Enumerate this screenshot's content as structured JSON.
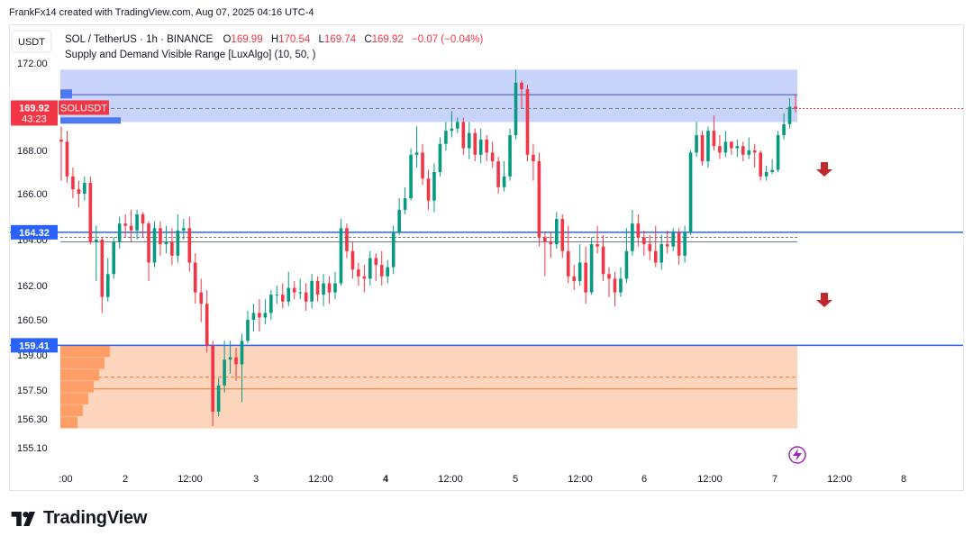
{
  "credit": "FrankFx14 created with TradingView.com, Aug 07, 2025 04:16 UTC-4",
  "brand": "TradingView",
  "currency_button": "USDT",
  "legend": {
    "symbol": "SOL / TetherUS · 1h · BINANCE",
    "o_label": "O",
    "o_value": "169.99",
    "h_label": "H",
    "h_value": "170.54",
    "l_label": "L",
    "l_value": "169.74",
    "c_label": "C",
    "c_value": "169.92",
    "change": "−0.07 (−0.04%)",
    "indicator": "Supply and Demand Visible Range [LuxAlgo] (10, 50, )"
  },
  "price_badge": {
    "price": "169.92",
    "countdown": "43:23",
    "symbol_tag": "SOLUSDT"
  },
  "hlines": [
    {
      "value": 164.32,
      "label": "164.32",
      "color": "#2962ff"
    },
    {
      "value": 159.41,
      "label": "159.41",
      "color": "#2962ff"
    }
  ],
  "arrows": [
    {
      "name": "down-arrow-upper"
    },
    {
      "name": "down-arrow-lower"
    }
  ],
  "colors": {
    "up": "#089981",
    "down": "#f23645",
    "supply": "#c9d4fb",
    "demand": "#fdd5bc",
    "hline": "#2962ff"
  },
  "chart_data": {
    "type": "candlestick",
    "y_ticks": [
      "172.00",
      "168.00",
      "166.00",
      "164.00",
      "162.00",
      "160.50",
      "159.00",
      "157.50",
      "156.30",
      "155.10"
    ],
    "y_tick_values": [
      172.0,
      168.0,
      166.0,
      164.0,
      162.0,
      160.5,
      159.0,
      157.5,
      156.3,
      155.1
    ],
    "x_ticks": [
      ":00",
      "2",
      "12:00",
      "3",
      "12:00",
      "4",
      "12:00",
      "5",
      "12:00",
      "6",
      "12:00",
      "7",
      "12:00",
      "8"
    ],
    "x_tick_bold": [
      false,
      false,
      false,
      false,
      false,
      true,
      false,
      false,
      false,
      false,
      false,
      false,
      false,
      false
    ],
    "supply_zone": {
      "top": 171.7,
      "bottom": 169.3,
      "avg": 169.92,
      "poc": 170.55
    },
    "demand_zone": {
      "top": 159.4,
      "bottom": 155.9,
      "avg": 158.05,
      "poc": 157.55
    },
    "candles": [
      [
        168.5,
        168.4,
        169.1,
        166.6
      ],
      [
        168.4,
        166.8,
        168.9,
        166.5
      ],
      [
        166.8,
        166.2,
        167.2,
        165.8
      ],
      [
        166.2,
        166.0,
        166.6,
        165.4
      ],
      [
        166.0,
        166.5,
        166.8,
        165.7
      ],
      [
        166.5,
        163.9,
        166.8,
        163.8
      ],
      [
        163.9,
        164.0,
        164.6,
        162.2
      ],
      [
        164.0,
        161.5,
        164.1,
        160.8
      ],
      [
        161.5,
        162.5,
        163.2,
        161.3
      ],
      [
        162.5,
        163.9,
        164.1,
        162.3
      ],
      [
        163.9,
        164.7,
        165.0,
        163.6
      ],
      [
        164.7,
        164.6,
        165.1,
        164.1
      ],
      [
        164.6,
        164.4,
        165.3,
        163.9
      ],
      [
        164.4,
        165.1,
        165.3,
        164.0
      ],
      [
        165.1,
        164.7,
        165.2,
        164.1
      ],
      [
        164.7,
        163.0,
        164.8,
        162.2
      ],
      [
        163.0,
        164.5,
        164.8,
        162.8
      ],
      [
        164.5,
        163.8,
        164.8,
        163.3
      ],
      [
        163.8,
        163.9,
        164.6,
        163.4
      ],
      [
        163.9,
        163.3,
        164.5,
        162.9
      ],
      [
        163.3,
        164.4,
        165.1,
        163.0
      ],
      [
        164.4,
        164.5,
        164.9,
        164.0
      ],
      [
        164.5,
        163.0,
        165.0,
        162.6
      ],
      [
        163.0,
        161.7,
        163.4,
        161.2
      ],
      [
        161.7,
        161.2,
        162.3,
        160.4
      ],
      [
        161.2,
        159.4,
        161.8,
        159.1
      ],
      [
        159.4,
        156.6,
        159.6,
        156.0
      ],
      [
        156.6,
        157.7,
        158.0,
        156.4
      ],
      [
        157.7,
        158.8,
        159.6,
        157.4
      ],
      [
        158.8,
        158.9,
        159.6,
        158.2
      ],
      [
        158.9,
        158.6,
        159.3,
        157.9
      ],
      [
        158.6,
        159.6,
        159.9,
        157.0
      ],
      [
        159.6,
        160.5,
        160.9,
        159.5
      ],
      [
        160.5,
        160.8,
        161.2,
        160.0
      ],
      [
        160.8,
        160.6,
        161.4,
        160.0
      ],
      [
        160.6,
        160.8,
        161.4,
        160.3
      ],
      [
        160.8,
        161.6,
        161.8,
        160.5
      ],
      [
        161.6,
        161.6,
        162.0,
        161.2
      ],
      [
        161.6,
        161.3,
        162.1,
        161.0
      ],
      [
        161.3,
        161.9,
        162.6,
        161.1
      ],
      [
        161.9,
        161.7,
        162.2,
        161.4
      ],
      [
        161.7,
        161.7,
        162.3,
        161.4
      ],
      [
        161.7,
        161.3,
        162.1,
        160.9
      ],
      [
        161.3,
        162.2,
        162.5,
        161.0
      ],
      [
        162.2,
        161.6,
        162.4,
        161.3
      ],
      [
        161.6,
        162.1,
        162.5,
        161.1
      ],
      [
        162.1,
        161.7,
        162.4,
        161.2
      ],
      [
        161.7,
        162.1,
        162.6,
        161.4
      ],
      [
        162.1,
        164.5,
        164.9,
        162.0
      ],
      [
        164.5,
        163.5,
        164.7,
        163.2
      ],
      [
        163.5,
        162.7,
        163.9,
        162.3
      ],
      [
        162.7,
        162.4,
        163.0,
        162.0
      ],
      [
        162.4,
        162.3,
        162.9,
        161.7
      ],
      [
        162.3,
        163.2,
        163.5,
        162.0
      ],
      [
        163.2,
        162.9,
        163.4,
        162.2
      ],
      [
        162.9,
        162.4,
        163.5,
        162.0
      ],
      [
        162.4,
        162.8,
        163.1,
        162.1
      ],
      [
        162.8,
        164.3,
        164.6,
        162.5
      ],
      [
        164.3,
        165.3,
        165.8,
        164.2
      ],
      [
        165.3,
        165.8,
        166.3,
        165.1
      ],
      [
        165.8,
        167.8,
        168.1,
        165.7
      ],
      [
        167.8,
        167.9,
        169.1,
        167.2
      ],
      [
        167.9,
        166.7,
        168.3,
        166.4
      ],
      [
        166.7,
        165.7,
        167.1,
        165.3
      ],
      [
        165.7,
        167.0,
        167.4,
        165.2
      ],
      [
        167.0,
        168.3,
        168.6,
        166.8
      ],
      [
        168.3,
        168.9,
        169.3,
        168.0
      ],
      [
        168.9,
        169.0,
        169.8,
        168.6
      ],
      [
        169.0,
        169.3,
        169.5,
        168.8
      ],
      [
        169.3,
        168.1,
        169.5,
        167.8
      ],
      [
        168.1,
        168.8,
        169.3,
        167.6
      ],
      [
        168.8,
        167.8,
        169.0,
        167.5
      ],
      [
        167.8,
        168.5,
        169.0,
        167.4
      ],
      [
        168.5,
        167.9,
        168.7,
        167.5
      ],
      [
        167.9,
        167.5,
        168.4,
        167.2
      ],
      [
        167.5,
        166.3,
        167.7,
        166.0
      ],
      [
        166.3,
        166.8,
        167.5,
        166.1
      ],
      [
        166.8,
        168.7,
        169.0,
        166.6
      ],
      [
        168.7,
        171.1,
        171.7,
        168.5
      ],
      [
        171.1,
        170.8,
        171.2,
        169.9
      ],
      [
        170.8,
        167.8,
        171.0,
        167.5
      ],
      [
        167.8,
        167.5,
        168.3,
        166.6
      ],
      [
        167.5,
        164.1,
        167.9,
        163.7
      ],
      [
        164.1,
        163.9,
        164.3,
        162.4
      ],
      [
        163.9,
        163.8,
        164.3,
        163.2
      ],
      [
        163.8,
        164.9,
        165.2,
        163.6
      ],
      [
        164.9,
        163.5,
        165.1,
        163.2
      ],
      [
        163.5,
        162.4,
        164.6,
        162.1
      ],
      [
        162.4,
        162.2,
        162.9,
        161.8
      ],
      [
        162.2,
        163.0,
        163.8,
        162.0
      ],
      [
        163.0,
        161.7,
        163.7,
        161.2
      ],
      [
        161.7,
        163.8,
        164.1,
        161.6
      ],
      [
        163.8,
        163.7,
        164.6,
        163.4
      ],
      [
        163.7,
        162.5,
        164.2,
        162.2
      ],
      [
        162.5,
        162.3,
        162.8,
        161.5
      ],
      [
        162.3,
        161.7,
        162.6,
        161.1
      ],
      [
        161.7,
        162.3,
        162.8,
        161.5
      ],
      [
        162.3,
        163.5,
        164.5,
        162.1
      ],
      [
        163.5,
        164.7,
        165.3,
        163.3
      ],
      [
        164.7,
        164.1,
        165.1,
        163.7
      ],
      [
        164.1,
        163.8,
        164.4,
        163.3
      ],
      [
        163.8,
        163.5,
        164.2,
        163.1
      ],
      [
        163.5,
        163.0,
        164.6,
        162.8
      ],
      [
        163.0,
        163.8,
        164.2,
        162.7
      ],
      [
        163.8,
        163.7,
        164.4,
        163.4
      ],
      [
        163.7,
        164.3,
        164.5,
        163.5
      ],
      [
        164.3,
        163.3,
        164.5,
        162.9
      ],
      [
        163.3,
        164.3,
        164.6,
        163.0
      ],
      [
        164.3,
        167.9,
        168.0,
        164.2
      ],
      [
        167.9,
        168.7,
        169.3,
        167.7
      ],
      [
        168.7,
        167.5,
        168.9,
        167.3
      ],
      [
        167.5,
        168.9,
        169.1,
        167.2
      ],
      [
        168.9,
        168.2,
        169.6,
        168.0
      ],
      [
        168.2,
        167.9,
        168.7,
        167.6
      ],
      [
        167.9,
        168.4,
        168.9,
        167.7
      ],
      [
        168.4,
        168.1,
        168.4,
        167.8
      ],
      [
        168.1,
        168.2,
        168.5,
        167.7
      ],
      [
        168.2,
        167.8,
        168.4,
        167.5
      ],
      [
        167.8,
        168.0,
        168.6,
        167.6
      ],
      [
        168.0,
        167.9,
        168.3,
        167.2
      ],
      [
        167.9,
        166.8,
        168.0,
        166.6
      ],
      [
        166.8,
        167.0,
        167.3,
        166.6
      ],
      [
        167.0,
        167.1,
        167.6,
        166.9
      ],
      [
        167.1,
        168.7,
        168.9,
        167.0
      ],
      [
        168.7,
        169.2,
        169.7,
        168.5
      ],
      [
        169.2,
        170.0,
        170.4,
        169.0
      ],
      [
        170.0,
        169.92,
        170.54,
        169.74
      ]
    ]
  }
}
